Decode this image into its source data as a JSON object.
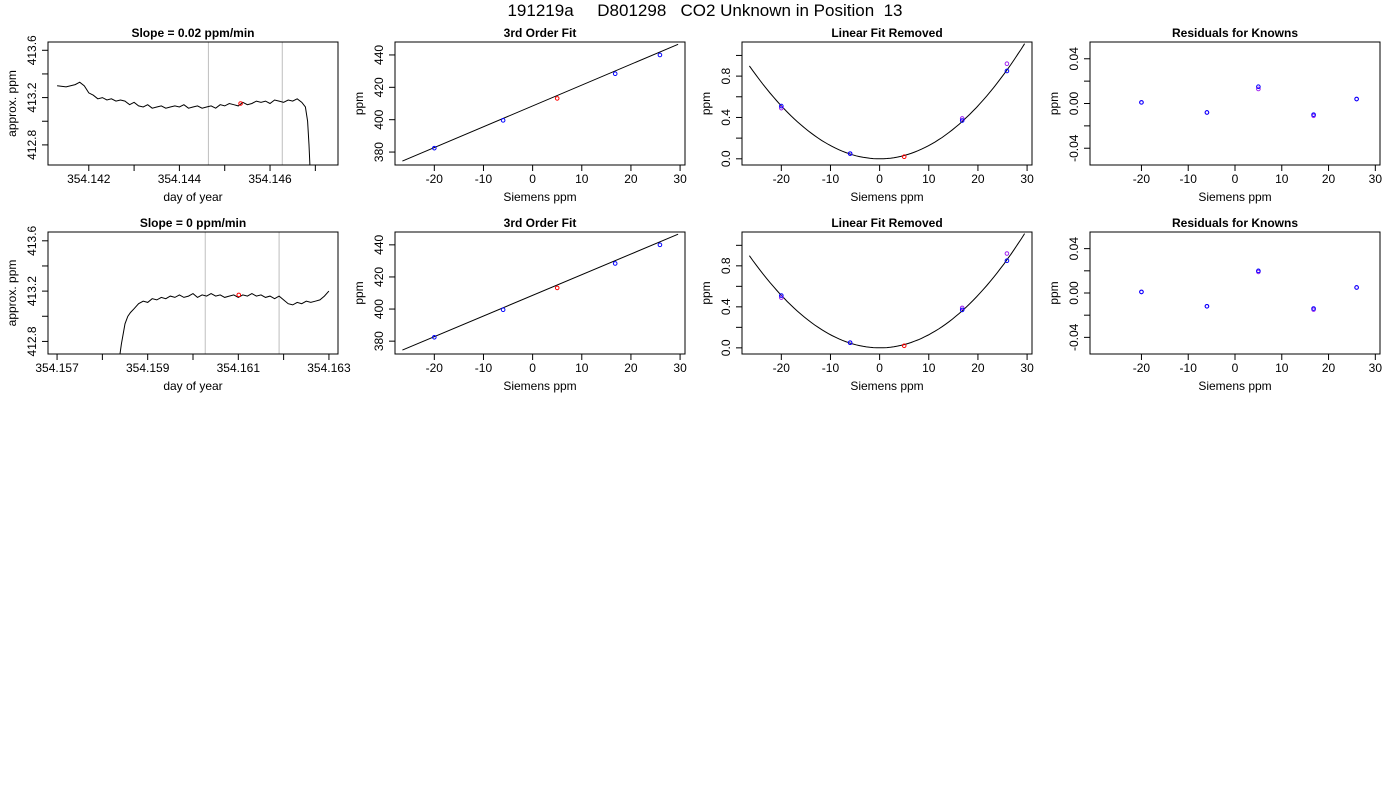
{
  "figure": {
    "title": "191219a     D801298   CO2 Unknown in Position  13"
  },
  "colors": {
    "line": "#000000",
    "known_point_1": "#0000ff",
    "known_point_2": "#a020f0",
    "unknown_point": "#ff0000",
    "cursor_line": "#bebebe"
  },
  "chart_data": [
    {
      "id": "r1-timeseries",
      "type": "line",
      "title": "Slope =  0.02  ppm/min",
      "xlabel": "day of year",
      "ylabel": "approx. ppm",
      "xlim": [
        354.1411,
        354.1475
      ],
      "ylim": [
        412.63,
        413.67
      ],
      "xticks": [
        354.142,
        354.143,
        354.144,
        354.145,
        354.146,
        354.147
      ],
      "xtick_labels": [
        "354.142",
        "",
        "354.144",
        "",
        "354.146",
        ""
      ],
      "yticks": [
        412.8,
        413.0,
        413.2,
        413.4,
        413.6
      ],
      "ytick_labels": [
        "412.8",
        "",
        "413.2",
        "",
        "413.6"
      ],
      "vlines": [
        354.14464,
        354.14627
      ],
      "marker": {
        "x": 354.14535,
        "y": 413.15
      },
      "x": [
        354.1413,
        354.1415,
        354.1417,
        354.1418,
        354.1419,
        354.142,
        354.1421,
        354.1422,
        354.1423,
        354.1424,
        354.1425,
        354.1426,
        354.1427,
        354.1428,
        354.1429,
        354.143,
        354.1431,
        354.1432,
        354.1433,
        354.1434,
        354.1435,
        354.1436,
        354.1437,
        354.1438,
        354.1439,
        354.144,
        354.1441,
        354.1442,
        354.1443,
        354.1444,
        354.1445,
        354.1446,
        354.1447,
        354.1448,
        354.1449,
        354.145,
        354.1451,
        354.1452,
        354.1453,
        354.1454,
        354.1455,
        354.1456,
        354.1457,
        354.1458,
        354.1459,
        354.146,
        354.1461,
        354.1462,
        354.1463,
        354.1464,
        354.1465,
        354.1466,
        354.1467,
        354.14678,
        354.14683,
        354.14686,
        354.14688
      ],
      "y": [
        413.3,
        413.29,
        413.31,
        413.33,
        413.3,
        413.24,
        413.22,
        413.19,
        413.2,
        413.18,
        413.19,
        413.17,
        413.18,
        413.17,
        413.14,
        413.16,
        413.13,
        413.12,
        413.14,
        413.11,
        413.12,
        413.13,
        413.11,
        413.12,
        413.13,
        413.12,
        413.14,
        413.11,
        413.12,
        413.13,
        413.11,
        413.12,
        413.13,
        413.11,
        413.14,
        413.13,
        413.15,
        413.14,
        413.13,
        413.16,
        413.14,
        413.15,
        413.17,
        413.16,
        413.17,
        413.15,
        413.18,
        413.17,
        413.16,
        413.18,
        413.17,
        413.19,
        413.16,
        413.12,
        413.0,
        412.8,
        412.63
      ]
    },
    {
      "id": "r1-fit",
      "type": "scatter",
      "title": "3rd Order Fit",
      "xlabel": "Siemens ppm",
      "ylabel": "ppm",
      "xlim": [
        -28,
        31
      ],
      "ylim": [
        372,
        448
      ],
      "xticks": [
        -20,
        -10,
        0,
        10,
        20,
        30
      ],
      "xtick_labels": [
        "-20",
        "-10",
        "0",
        "10",
        "20",
        "30"
      ],
      "yticks": [
        380,
        400,
        420,
        440
      ],
      "ytick_labels": [
        "380",
        "400",
        "420",
        "440"
      ],
      "curve": {
        "x": [
          -26.5,
          29.6
        ],
        "y": [
          374.4,
          446.6
        ]
      },
      "known_points": {
        "x": [
          -20,
          -6,
          16.8,
          25.9
        ],
        "y": [
          382.4,
          399.6,
          428.4,
          440.0
        ]
      },
      "unknown_point": {
        "x": 5.0,
        "y": 413.15
      }
    },
    {
      "id": "r1-linremoved",
      "type": "scatter",
      "title": "Linear Fit Removed",
      "xlabel": "Siemens ppm",
      "ylabel": "ppm",
      "xlim": [
        -28,
        31
      ],
      "ylim": [
        -0.06,
        1.13
      ],
      "xticks": [
        -20,
        -10,
        0,
        10,
        20,
        30
      ],
      "xtick_labels": [
        "-20",
        "-10",
        "0",
        "10",
        "20",
        "30"
      ],
      "yticks": [
        0.0,
        0.2,
        0.4,
        0.6,
        0.8,
        1.0
      ],
      "ytick_labels": [
        "0.0",
        "",
        "0.4",
        "",
        "0.8",
        ""
      ],
      "curve_coef": 0.00128,
      "curve_xrange": [
        -26.5,
        29.5
      ],
      "known_points_1": {
        "x": [
          -20,
          -6,
          16.8,
          25.9
        ],
        "y": [
          0.51,
          0.05,
          0.37,
          0.85
        ]
      },
      "known_points_2": {
        "x": [
          -20,
          -6,
          16.8,
          25.9
        ],
        "y": [
          0.49,
          0.05,
          0.39,
          0.92
        ]
      },
      "unknown_point": {
        "x": 5.0,
        "y": 0.02
      }
    },
    {
      "id": "r1-residuals",
      "type": "scatter",
      "title": "Residuals for Knowns",
      "xlabel": "Siemens ppm",
      "ylabel": "ppm",
      "xlim": [
        -31,
        31
      ],
      "ylim": [
        -0.055,
        0.055
      ],
      "xticks": [
        -20,
        -10,
        0,
        10,
        20,
        30
      ],
      "xtick_labels": [
        "-20",
        "-10",
        "0",
        "10",
        "20",
        "30"
      ],
      "yticks": [
        -0.04,
        -0.02,
        0.0,
        0.02,
        0.04
      ],
      "ytick_labels": [
        "-0.04",
        "",
        "0.00",
        "",
        "0.04"
      ],
      "points_1": {
        "x": [
          -20,
          -6,
          5.0,
          16.8,
          26
        ],
        "y": [
          0.001,
          -0.008,
          0.013,
          -0.011,
          0.004
        ]
      },
      "points_2": {
        "x": [
          -20,
          -6,
          5.0,
          16.8,
          26
        ],
        "y": [
          0.001,
          -0.008,
          0.015,
          -0.01,
          0.004
        ]
      }
    },
    {
      "id": "r2-timeseries",
      "type": "line",
      "title": "Slope =  0  ppm/min",
      "xlabel": "day of year",
      "ylabel": "approx. ppm",
      "xlim": [
        354.1568,
        354.1632
      ],
      "ylim": [
        412.7,
        413.67
      ],
      "xticks": [
        354.157,
        354.158,
        354.159,
        354.16,
        354.161,
        354.162,
        354.163
      ],
      "xtick_labels": [
        "354.157",
        "",
        "354.159",
        "",
        "354.161",
        "",
        "354.163"
      ],
      "yticks": [
        412.8,
        413.0,
        413.2,
        413.4,
        413.6
      ],
      "ytick_labels": [
        "412.8",
        "",
        "413.2",
        "",
        "413.6"
      ],
      "vlines": [
        354.16027,
        354.1619
      ],
      "marker": {
        "x": 354.16101,
        "y": 413.17
      },
      "x": [
        354.15839,
        354.15842,
        354.15846,
        354.1585,
        354.15856,
        354.15862,
        354.1587,
        354.1588,
        354.1589,
        354.159,
        354.1591,
        354.1592,
        354.1593,
        354.1594,
        354.1595,
        354.1596,
        354.1597,
        354.1598,
        354.1599,
        354.16,
        354.1601,
        354.1602,
        354.1603,
        354.1604,
        354.1605,
        354.1606,
        354.1607,
        354.1608,
        354.1609,
        354.161,
        354.1611,
        354.1612,
        354.1613,
        354.1614,
        354.1615,
        354.1616,
        354.1617,
        354.1618,
        354.1619,
        354.162,
        354.1621,
        354.1622,
        354.1623,
        354.1624,
        354.1625,
        354.1626,
        354.1627,
        354.1628,
        354.1629,
        354.163
      ],
      "y": [
        412.7,
        412.78,
        412.86,
        412.94,
        413.0,
        413.03,
        413.06,
        413.1,
        413.12,
        413.11,
        413.14,
        413.13,
        413.15,
        413.14,
        413.16,
        413.15,
        413.17,
        413.15,
        413.16,
        413.18,
        413.15,
        413.17,
        413.16,
        413.18,
        413.16,
        413.17,
        413.15,
        413.16,
        413.17,
        413.15,
        413.17,
        413.16,
        413.18,
        413.16,
        413.17,
        413.15,
        413.16,
        413.14,
        413.16,
        413.13,
        413.1,
        413.09,
        413.11,
        413.1,
        413.12,
        413.11,
        413.12,
        413.13,
        413.16,
        413.2
      ]
    },
    {
      "id": "r2-fit",
      "type": "scatter",
      "title": "3rd Order Fit",
      "xlabel": "Siemens ppm",
      "ylabel": "ppm",
      "xlim": [
        -28,
        31
      ],
      "ylim": [
        372,
        448
      ],
      "xticks": [
        -20,
        -10,
        0,
        10,
        20,
        30
      ],
      "xtick_labels": [
        "-20",
        "-10",
        "0",
        "10",
        "20",
        "30"
      ],
      "yticks": [
        380,
        400,
        420,
        440
      ],
      "ytick_labels": [
        "380",
        "400",
        "420",
        "440"
      ],
      "curve": {
        "x": [
          -26.5,
          29.6
        ],
        "y": [
          374.4,
          446.6
        ]
      },
      "known_points": {
        "x": [
          -20,
          -6,
          16.8,
          25.9
        ],
        "y": [
          382.4,
          399.6,
          428.4,
          440.0
        ]
      },
      "unknown_point": {
        "x": 5.0,
        "y": 413.17
      }
    },
    {
      "id": "r2-linremoved",
      "type": "scatter",
      "title": "Linear Fit Removed",
      "xlabel": "Siemens ppm",
      "ylabel": "ppm",
      "xlim": [
        -28,
        31
      ],
      "ylim": [
        -0.06,
        1.13
      ],
      "xticks": [
        -20,
        -10,
        0,
        10,
        20,
        30
      ],
      "xtick_labels": [
        "-20",
        "-10",
        "0",
        "10",
        "20",
        "30"
      ],
      "yticks": [
        0.0,
        0.2,
        0.4,
        0.6,
        0.8,
        1.0
      ],
      "ytick_labels": [
        "0.0",
        "",
        "0.4",
        "",
        "0.8",
        ""
      ],
      "curve_coef": 0.00128,
      "curve_xrange": [
        -26.5,
        29.5
      ],
      "known_points_1": {
        "x": [
          -20,
          -6,
          16.8,
          25.9
        ],
        "y": [
          0.51,
          0.05,
          0.37,
          0.85
        ]
      },
      "known_points_2": {
        "x": [
          -20,
          -6,
          16.8,
          25.9
        ],
        "y": [
          0.49,
          0.05,
          0.39,
          0.92
        ]
      },
      "unknown_point": {
        "x": 5.0,
        "y": 0.02
      }
    },
    {
      "id": "r2-residuals",
      "type": "scatter",
      "title": "Residuals for Knowns",
      "xlabel": "Siemens ppm",
      "ylabel": "ppm",
      "xlim": [
        -31,
        31
      ],
      "ylim": [
        -0.055,
        0.055
      ],
      "xticks": [
        -20,
        -10,
        0,
        10,
        20,
        30
      ],
      "xtick_labels": [
        "-20",
        "-10",
        "0",
        "10",
        "20",
        "30"
      ],
      "yticks": [
        -0.04,
        -0.02,
        0.0,
        0.02,
        0.04
      ],
      "ytick_labels": [
        "-0.04",
        "",
        "0.00",
        "",
        "0.04"
      ],
      "points_1": {
        "x": [
          -20,
          -6,
          5.0,
          16.8,
          26
        ],
        "y": [
          0.001,
          -0.012,
          0.019,
          -0.015,
          0.005
        ]
      },
      "points_2": {
        "x": [
          -20,
          -6,
          5.0,
          16.8,
          26
        ],
        "y": [
          0.001,
          -0.012,
          0.02,
          -0.014,
          0.005
        ]
      }
    }
  ]
}
